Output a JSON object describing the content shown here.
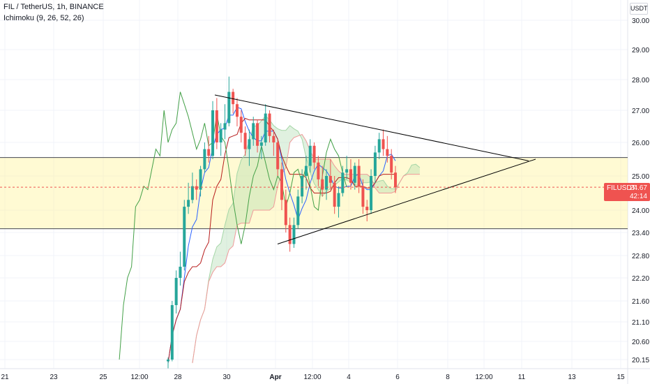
{
  "header": {
    "title": "FIL / TetherUS, 1h, BINANCE",
    "indicator": "Ichimoku (9, 26, 52, 26)"
  },
  "price_axis": {
    "unit": "USDT",
    "current_symbol": "FILUSDT",
    "current_price": "24.67",
    "countdown": "42:14"
  },
  "colors": {
    "up": "#26a69a",
    "down": "#ef5350",
    "conversion_line": "#2962ff",
    "base_line": "#b71c1c",
    "lagging_span": "#43a047",
    "kumo_bull": "#a5d6a7",
    "kumo_bear": "#ef9a9a",
    "zone_fill": "#fff59d",
    "trend_line": "#000000",
    "price_line": "#ef5350"
  },
  "chart_data": {
    "type": "candlestick",
    "y_ticks": [
      "30.00",
      "29.00",
      "28.00",
      "27.00",
      "26.00",
      "25.00",
      "24.00",
      "23.40",
      "22.80",
      "22.20",
      "21.60",
      "21.10",
      "20.60",
      "20.15"
    ],
    "x_ticks": [
      "21",
      "23",
      "25",
      "12:00",
      "28",
      "30",
      "Apr",
      "12:00",
      "4",
      "6",
      "8",
      "12:00",
      "11",
      "13",
      "15"
    ],
    "ylim": [
      20.1,
      30.2
    ],
    "grid": true,
    "zone": {
      "top": 25.55,
      "bottom": 23.5
    },
    "current_price": 24.67,
    "candles_ohlc": [
      [
        20.1,
        20.2,
        19.9,
        20.15
      ],
      [
        20.15,
        21.6,
        20.1,
        21.5
      ],
      [
        21.5,
        22.4,
        21.3,
        22.2
      ],
      [
        22.2,
        22.9,
        22.0,
        22.5
      ],
      [
        22.5,
        24.3,
        22.4,
        24.1
      ],
      [
        24.1,
        24.8,
        23.9,
        24.3
      ],
      [
        24.3,
        25.1,
        24.2,
        24.7
      ],
      [
        24.7,
        24.9,
        24.3,
        24.6
      ],
      [
        24.6,
        25.3,
        24.4,
        25.2
      ],
      [
        25.2,
        26.0,
        25.1,
        25.8
      ],
      [
        25.8,
        26.2,
        25.4,
        25.6
      ],
      [
        25.6,
        27.3,
        25.5,
        27.0
      ],
      [
        27.0,
        27.4,
        25.8,
        26.0
      ],
      [
        26.0,
        26.6,
        25.6,
        26.4
      ],
      [
        26.4,
        27.2,
        26.1,
        26.6
      ],
      [
        26.6,
        28.1,
        26.5,
        27.6
      ],
      [
        27.6,
        27.7,
        26.9,
        27.2
      ],
      [
        27.2,
        27.4,
        26.5,
        26.8
      ],
      [
        26.8,
        27.0,
        26.0,
        26.3
      ],
      [
        26.3,
        26.5,
        25.6,
        25.8
      ],
      [
        25.8,
        26.4,
        25.3,
        26.1
      ],
      [
        26.1,
        26.8,
        25.9,
        26.6
      ],
      [
        26.6,
        26.7,
        25.7,
        25.9
      ],
      [
        25.9,
        26.2,
        25.5,
        26.0
      ],
      [
        26.0,
        27.2,
        25.9,
        26.9
      ],
      [
        26.9,
        27.0,
        26.0,
        26.2
      ],
      [
        26.2,
        26.4,
        25.6,
        26.0
      ],
      [
        26.0,
        26.1,
        25.0,
        25.2
      ],
      [
        25.2,
        25.4,
        24.0,
        24.3
      ],
      [
        24.3,
        24.6,
        23.4,
        23.6
      ],
      [
        23.6,
        23.8,
        22.9,
        23.1
      ],
      [
        23.1,
        23.8,
        23.0,
        23.6
      ],
      [
        23.6,
        24.6,
        23.5,
        24.4
      ],
      [
        24.4,
        25.2,
        24.2,
        25.0
      ],
      [
        25.0,
        25.6,
        24.6,
        25.3
      ],
      [
        25.3,
        26.1,
        25.1,
        25.9
      ],
      [
        25.9,
        26.0,
        25.2,
        25.4
      ],
      [
        25.4,
        25.6,
        24.7,
        24.9
      ],
      [
        24.9,
        25.3,
        24.4,
        24.6
      ],
      [
        24.6,
        25.2,
        24.3,
        25.0
      ],
      [
        25.0,
        25.5,
        24.6,
        24.8
      ],
      [
        24.8,
        25.0,
        23.9,
        24.1
      ],
      [
        24.1,
        24.7,
        23.8,
        24.5
      ],
      [
        24.5,
        25.3,
        24.4,
        25.1
      ],
      [
        25.1,
        25.6,
        24.9,
        25.2
      ],
      [
        25.2,
        25.5,
        24.6,
        24.8
      ],
      [
        24.8,
        25.4,
        24.6,
        25.3
      ],
      [
        25.3,
        25.5,
        24.5,
        24.7
      ],
      [
        24.7,
        24.9,
        23.9,
        24.1
      ],
      [
        24.1,
        24.3,
        23.7,
        24.0
      ],
      [
        24.0,
        25.2,
        23.9,
        25.0
      ],
      [
        25.0,
        25.9,
        24.8,
        25.7
      ],
      [
        25.7,
        26.3,
        25.5,
        26.1
      ],
      [
        26.1,
        26.4,
        25.6,
        25.8
      ],
      [
        25.8,
        26.2,
        25.4,
        25.6
      ],
      [
        25.6,
        25.8,
        24.9,
        25.1
      ],
      [
        25.1,
        25.3,
        24.5,
        24.67
      ]
    ],
    "annotations": [
      {
        "type": "trend_line",
        "from": [
          28.9,
          27.5
        ],
        "to": [
          32.2,
          25.4
        ]
      },
      {
        "type": "trend_line",
        "from": [
          31.1,
          23.1
        ],
        "to": [
          32.2,
          25.45
        ]
      }
    ]
  }
}
